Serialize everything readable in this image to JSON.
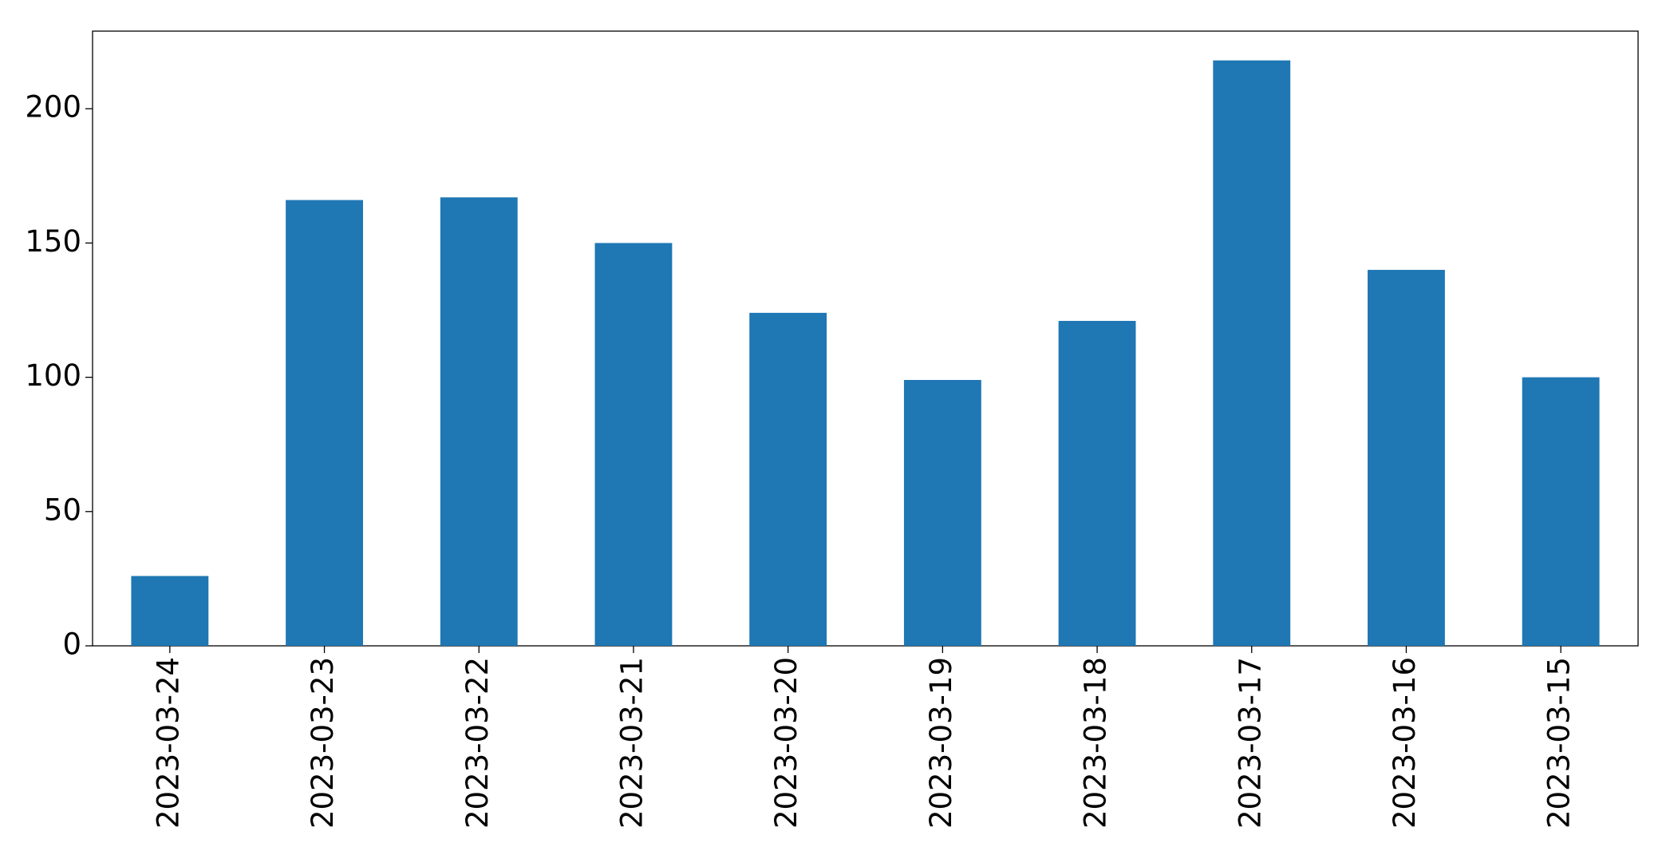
{
  "chart_data": {
    "type": "bar",
    "categories": [
      "2023-03-24",
      "2023-03-23",
      "2023-03-22",
      "2023-03-21",
      "2023-03-20",
      "2023-03-19",
      "2023-03-18",
      "2023-03-17",
      "2023-03-16",
      "2023-03-15"
    ],
    "values": [
      26,
      166,
      167,
      150,
      124,
      99,
      121,
      218,
      140,
      100
    ],
    "color": "#1f77b4",
    "ylim": [
      0,
      228.9
    ],
    "yticks": [
      0,
      50,
      100,
      150,
      200
    ],
    "grid": false
  }
}
